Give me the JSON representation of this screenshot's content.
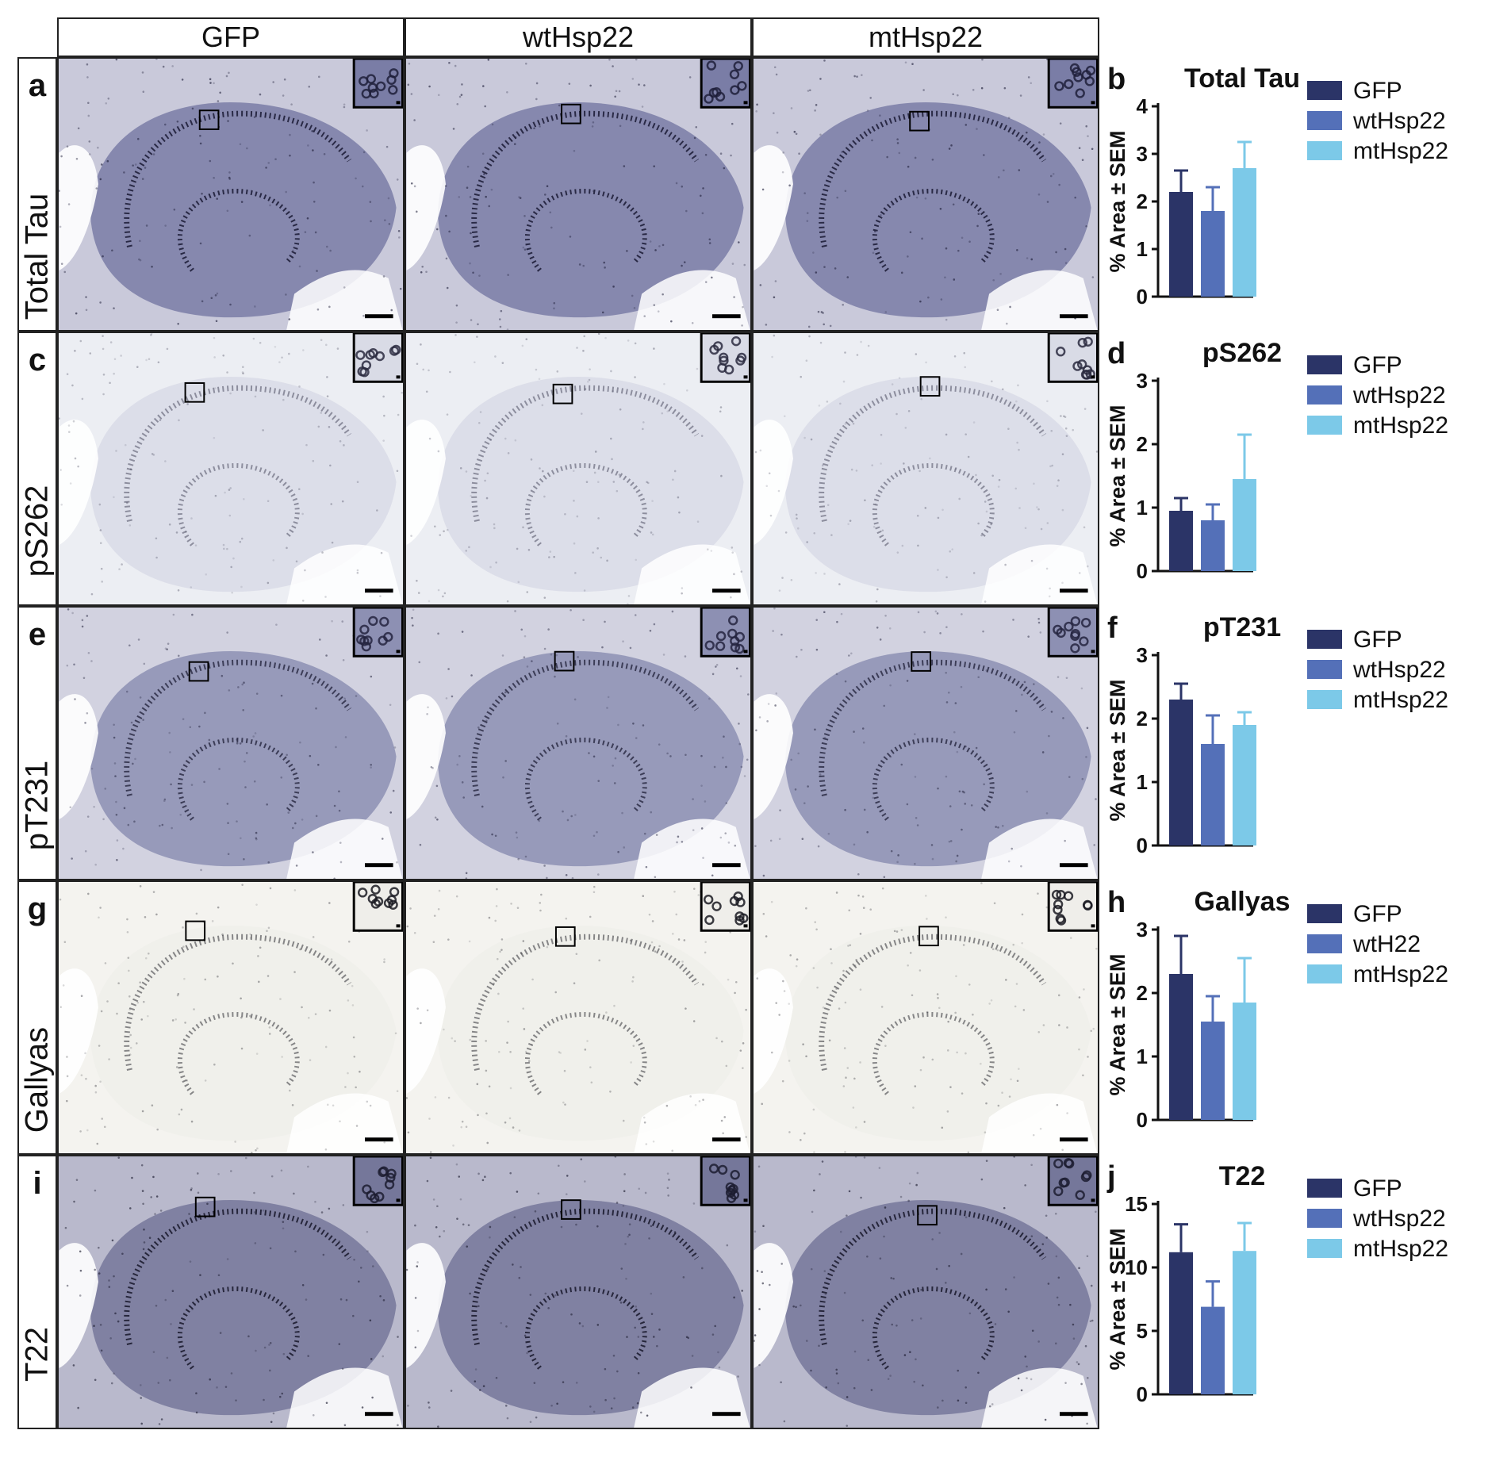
{
  "columns": [
    "GFP",
    "wtHsp22",
    "mtHsp22"
  ],
  "rows": [
    {
      "letter": "a",
      "marker": "Total Tau",
      "stain": "#7a7da6",
      "bg": "#c9c9da",
      "cells": "#1f1f3a",
      "density": 0.9
    },
    {
      "letter": "c",
      "marker": "pS262",
      "stain": "#d9dbe6",
      "bg": "#eceef3",
      "cells": "#2a2a40",
      "density": 0.45
    },
    {
      "letter": "e",
      "marker": "pT231",
      "stain": "#8d90b3",
      "bg": "#d2d2e0",
      "cells": "#25253f",
      "density": 0.8
    },
    {
      "letter": "g",
      "marker": "Gallyas",
      "stain": "#efeeea",
      "bg": "#f4f3ef",
      "cells": "#1a1a22",
      "density": 0.5
    },
    {
      "letter": "i",
      "marker": "T22",
      "stain": "#75779a",
      "bg": "#b9b9cc",
      "cells": "#1c1c30",
      "density": 0.9
    }
  ],
  "legend_colors": {
    "GFP": "#2b3467",
    "wtHsp22": "#5470b8",
    "mtHsp22": "#7cc9e8"
  },
  "chart_data": [
    {
      "panel": "b",
      "type": "bar",
      "title": "Total Tau",
      "ylabel": "% Area ± SEM",
      "ylim": [
        0,
        4
      ],
      "yticks": [
        0,
        1,
        2,
        3,
        4
      ],
      "categories": [
        "GFP",
        "wtHsp22",
        "mtHsp22"
      ],
      "legend": [
        "GFP",
        "wtHsp22",
        "mtHsp22"
      ],
      "values": [
        2.2,
        1.8,
        2.7
      ],
      "errors": [
        0.45,
        0.5,
        0.55
      ],
      "colors": [
        "#2b3467",
        "#5470b8",
        "#7cc9e8"
      ]
    },
    {
      "panel": "d",
      "type": "bar",
      "title": "pS262",
      "ylabel": "% Area ± SEM",
      "ylim": [
        0,
        3
      ],
      "yticks": [
        0,
        1,
        2,
        3
      ],
      "categories": [
        "GFP",
        "wtHsp22",
        "mtHsp22"
      ],
      "legend": [
        "GFP",
        "wtHsp22",
        "mtHsp22"
      ],
      "values": [
        0.95,
        0.8,
        1.45
      ],
      "errors": [
        0.2,
        0.25,
        0.7
      ],
      "colors": [
        "#2b3467",
        "#5470b8",
        "#7cc9e8"
      ]
    },
    {
      "panel": "f",
      "type": "bar",
      "title": "pT231",
      "ylabel": "% Area ± SEM",
      "ylim": [
        0,
        3
      ],
      "yticks": [
        0,
        1,
        2,
        3
      ],
      "categories": [
        "GFP",
        "wtHsp22",
        "mtHsp22"
      ],
      "legend": [
        "GFP",
        "wtHsp22",
        "mtHsp22"
      ],
      "values": [
        2.3,
        1.6,
        1.9
      ],
      "errors": [
        0.25,
        0.45,
        0.2
      ],
      "colors": [
        "#2b3467",
        "#5470b8",
        "#7cc9e8"
      ]
    },
    {
      "panel": "h",
      "type": "bar",
      "title": "Gallyas",
      "ylabel": "% Area ± SEM",
      "ylim": [
        0,
        3
      ],
      "yticks": [
        0,
        1,
        2,
        3
      ],
      "categories": [
        "GFP",
        "wtH22",
        "mtHsp22"
      ],
      "legend": [
        "GFP",
        "wtH22",
        "mtHsp22"
      ],
      "values": [
        2.3,
        1.55,
        1.85
      ],
      "errors": [
        0.6,
        0.4,
        0.7
      ],
      "colors": [
        "#2b3467",
        "#5470b8",
        "#7cc9e8"
      ]
    },
    {
      "panel": "j",
      "type": "bar",
      "title": "T22",
      "ylabel": "% Area ± SEM",
      "ylim": [
        0,
        15
      ],
      "yticks": [
        0,
        5,
        10,
        15
      ],
      "categories": [
        "GFP",
        "wtHsp22",
        "mtHsp22"
      ],
      "legend": [
        "GFP",
        "wtHsp22",
        "mtHsp22"
      ],
      "values": [
        11.2,
        6.9,
        11.3
      ],
      "errors": [
        2.2,
        2.0,
        2.2
      ],
      "colors": [
        "#2b3467",
        "#5470b8",
        "#7cc9e8"
      ]
    }
  ]
}
